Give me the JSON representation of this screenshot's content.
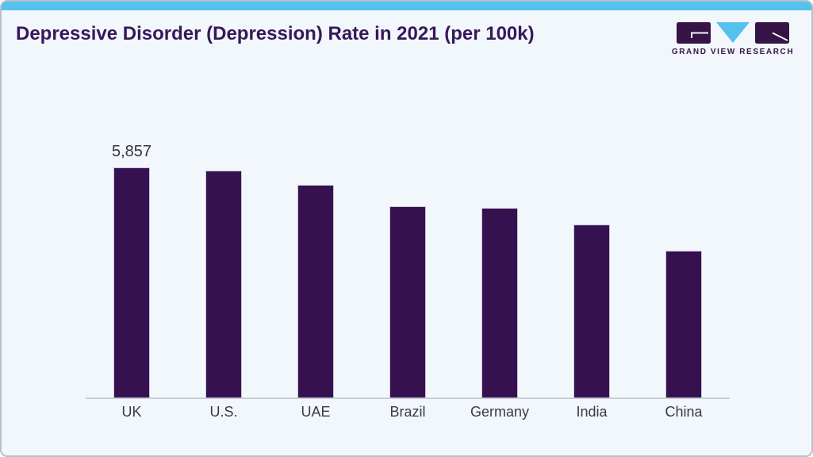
{
  "header": {
    "title": "Depressive Disorder (Depression) Rate in 2021 (per 100k)",
    "brand": "GRAND VIEW RESEARCH"
  },
  "colors": {
    "accent_bar": "#55c1ee",
    "bar": "#351150",
    "bar_outline": "#cdc4d9",
    "title": "#38175b",
    "background": "#f1f7fa",
    "axis": "#c9ced3",
    "label": "#34353d",
    "logo_purple": "#371447",
    "logo_triangle": "#55c1ee",
    "card_border": "#b7c0c8"
  },
  "chart_data": {
    "type": "bar",
    "title": "Depressive Disorder (Depression) Rate in 2021 (per 100k)",
    "categories": [
      "UK",
      "U.S.",
      "UAE",
      "Brazil",
      "Germany",
      "India",
      "China"
    ],
    "values": [
      5857,
      5780,
      5415,
      4870,
      4830,
      4410,
      3745
    ],
    "value_labels": [
      "5,857",
      "",
      "",
      "",
      "",
      "",
      ""
    ],
    "xlabel": "",
    "ylabel": "",
    "ylim": [
      0,
      6500
    ],
    "grid": false,
    "legend": false,
    "bar_color": "#351150"
  }
}
